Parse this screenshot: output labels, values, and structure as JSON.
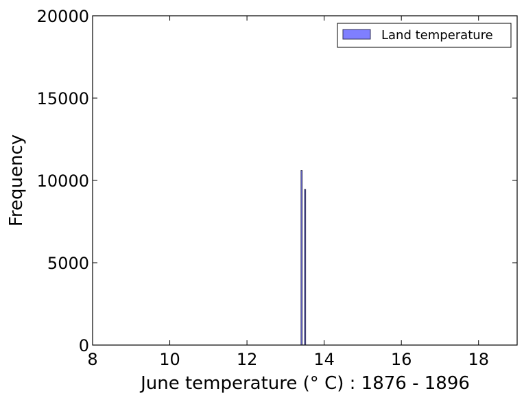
{
  "chart_data": {
    "type": "bar",
    "title": "",
    "xlabel": "June temperature ($^\\circ$ C) : 1876 - 1896",
    "xlabel_display": "June temperature (° C) : 1876 - 1896",
    "ylabel": "Frequency",
    "xlim": [
      8,
      19
    ],
    "ylim": [
      0,
      20000
    ],
    "xticks": [
      8,
      10,
      12,
      14,
      16,
      18
    ],
    "yticks": [
      0,
      5000,
      10000,
      15000,
      20000
    ],
    "grid": false,
    "legend_position": "top-right",
    "series": [
      {
        "name": "Land temperature",
        "color": "#7f7fff",
        "edge_color": "#333355",
        "bins": [
          {
            "x0": 13.4,
            "x1": 13.43,
            "value": 10600
          },
          {
            "x0": 13.49,
            "x1": 13.52,
            "value": 9450
          }
        ]
      }
    ]
  }
}
